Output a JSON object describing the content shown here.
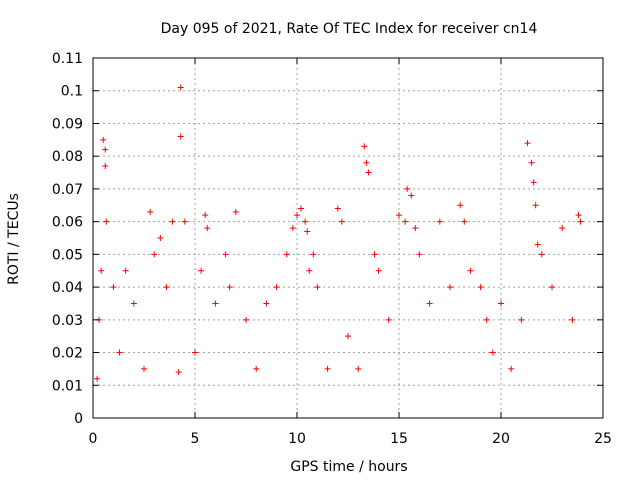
{
  "chart_data": {
    "type": "scatter",
    "title": "Day 095 of 2021, Rate Of TEC Index for receiver cn14",
    "xlabel": "GPS time / hours",
    "ylabel": "ROTI / TECUs",
    "xlim": [
      0,
      25
    ],
    "ylim": [
      0,
      0.11
    ],
    "grid": true,
    "x_ticks": [
      0,
      5,
      10,
      15,
      20,
      25
    ],
    "x_tick_labels": [
      "0",
      "5",
      "10",
      "15",
      "20",
      "25"
    ],
    "y_ticks": [
      0,
      0.01,
      0.02,
      0.03,
      0.04,
      0.05,
      0.06,
      0.07,
      0.08,
      0.09,
      0.1,
      0.11
    ],
    "y_tick_labels": [
      "0",
      "0.01",
      "0.02",
      "0.03",
      "0.04",
      "0.05",
      "0.06",
      "0.07",
      "0.08",
      "0.09",
      "0.1",
      "0.11"
    ],
    "marker": "+",
    "series": [
      {
        "name": "ROTI",
        "color": "#ff0000",
        "x": [
          0.2,
          0.3,
          0.4,
          0.5,
          0.6,
          0.6,
          0.65,
          1.0,
          1.3,
          1.6,
          2.0,
          2.5,
          2.8,
          3.0,
          3.3,
          3.6,
          3.9,
          4.2,
          4.3,
          4.3,
          4.5,
          5.0,
          5.3,
          5.5,
          5.6,
          6.0,
          6.5,
          6.7,
          7.0,
          7.5,
          8.0,
          8.5,
          9.0,
          9.5,
          9.8,
          10.0,
          10.2,
          10.4,
          10.5,
          10.6,
          10.8,
          11.0,
          11.5,
          12.0,
          12.2,
          12.5,
          13.0,
          13.3,
          13.4,
          13.5,
          13.8,
          14.0,
          14.5,
          15.0,
          15.3,
          15.4,
          15.6,
          15.8,
          16.0,
          16.5,
          17.0,
          17.5,
          18.0,
          18.2,
          18.5,
          19.0,
          19.3,
          19.6,
          20.0,
          20.5,
          21.0,
          21.3,
          21.5,
          21.6,
          21.7,
          21.8,
          22.0,
          22.5,
          23.0,
          23.5,
          23.8,
          23.9
        ],
        "y": [
          0.012,
          0.03,
          0.045,
          0.085,
          0.082,
          0.077,
          0.06,
          0.04,
          0.02,
          0.045,
          0.035,
          0.015,
          0.063,
          0.05,
          0.055,
          0.04,
          0.06,
          0.014,
          0.101,
          0.086,
          0.06,
          0.02,
          0.045,
          0.062,
          0.058,
          0.035,
          0.05,
          0.04,
          0.063,
          0.03,
          0.015,
          0.035,
          0.04,
          0.05,
          0.058,
          0.062,
          0.064,
          0.06,
          0.057,
          0.045,
          0.05,
          0.04,
          0.015,
          0.064,
          0.06,
          0.025,
          0.015,
          0.083,
          0.078,
          0.075,
          0.05,
          0.045,
          0.03,
          0.062,
          0.06,
          0.07,
          0.068,
          0.058,
          0.05,
          0.035,
          0.06,
          0.04,
          0.065,
          0.06,
          0.045,
          0.04,
          0.03,
          0.02,
          0.035,
          0.015,
          0.03,
          0.084,
          0.078,
          0.072,
          0.065,
          0.053,
          0.05,
          0.04,
          0.058,
          0.03,
          0.062,
          0.06
        ]
      }
    ]
  }
}
